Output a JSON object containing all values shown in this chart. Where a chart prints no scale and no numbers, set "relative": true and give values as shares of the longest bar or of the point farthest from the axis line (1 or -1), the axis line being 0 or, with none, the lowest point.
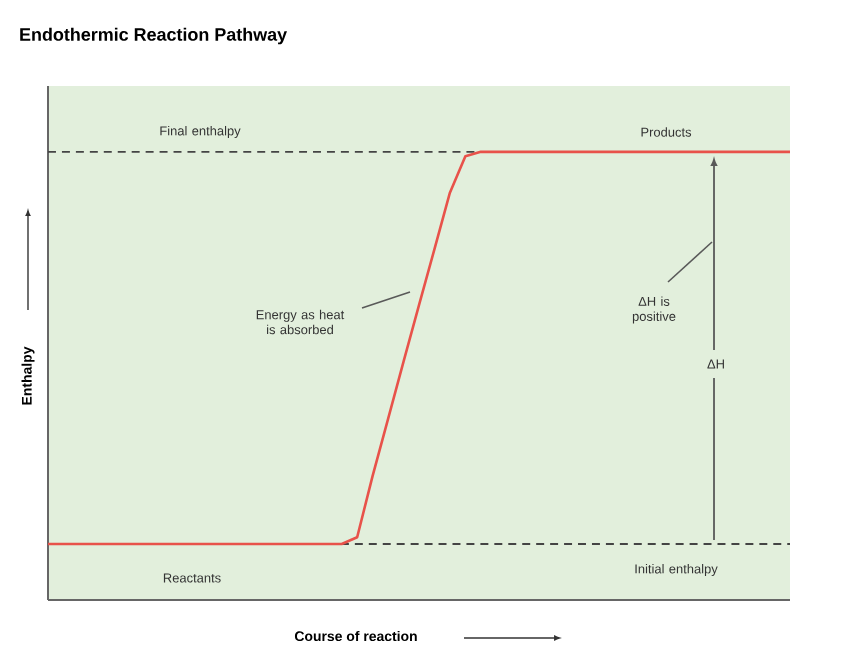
{
  "chart_data": {
    "type": "line",
    "relative": true,
    "title": "Endothermic Reaction Pathway",
    "xlabel": "Course of reaction",
    "ylabel": "Enthalpy",
    "categories": [
      null,
      null,
      null,
      null,
      null,
      null,
      null,
      null,
      null,
      null,
      null,
      null,
      null,
      null,
      null,
      null,
      null,
      null,
      null,
      null,
      null,
      null,
      null,
      null,
      null,
      null,
      null,
      null,
      null,
      null,
      null,
      null,
      null,
      null,
      null,
      null,
      null,
      null,
      null,
      null,
      null,
      null,
      null,
      null,
      null,
      null,
      null,
      null,
      null
    ],
    "series": [
      {
        "color": "#e8524a",
        "values": [
          0.125,
          0.125,
          0.125,
          0.125,
          0.125,
          0.125,
          0.125,
          0.125,
          0.125,
          0.125,
          0.125,
          0.125,
          0.125,
          0.125,
          0.125,
          0.125,
          0.125,
          0.125,
          0.125,
          0.125,
          0.14,
          0.277,
          0.404,
          0.532,
          0.658,
          0.783,
          0.909,
          0.99,
          1,
          1,
          1,
          1,
          1,
          1,
          1,
          1,
          1,
          1,
          1,
          1,
          1,
          1,
          1,
          1,
          1,
          1,
          1,
          1,
          1
        ]
      }
    ],
    "ref_lines": [
      {
        "axis": "y",
        "value": 1,
        "color": "#444444",
        "line_style": "dashed"
      },
      {
        "axis": "y",
        "value": 0.125,
        "color": "#444444",
        "line_style": "dashed"
      }
    ],
    "annotations": [
      "Final enthalpy",
      "Products",
      "Energy as heat is absorbed",
      "ΔH is positive",
      "ΔH",
      "Reactants",
      "Initial enthalpy"
    ],
    "marker": "none",
    "line_style": "solid"
  }
}
